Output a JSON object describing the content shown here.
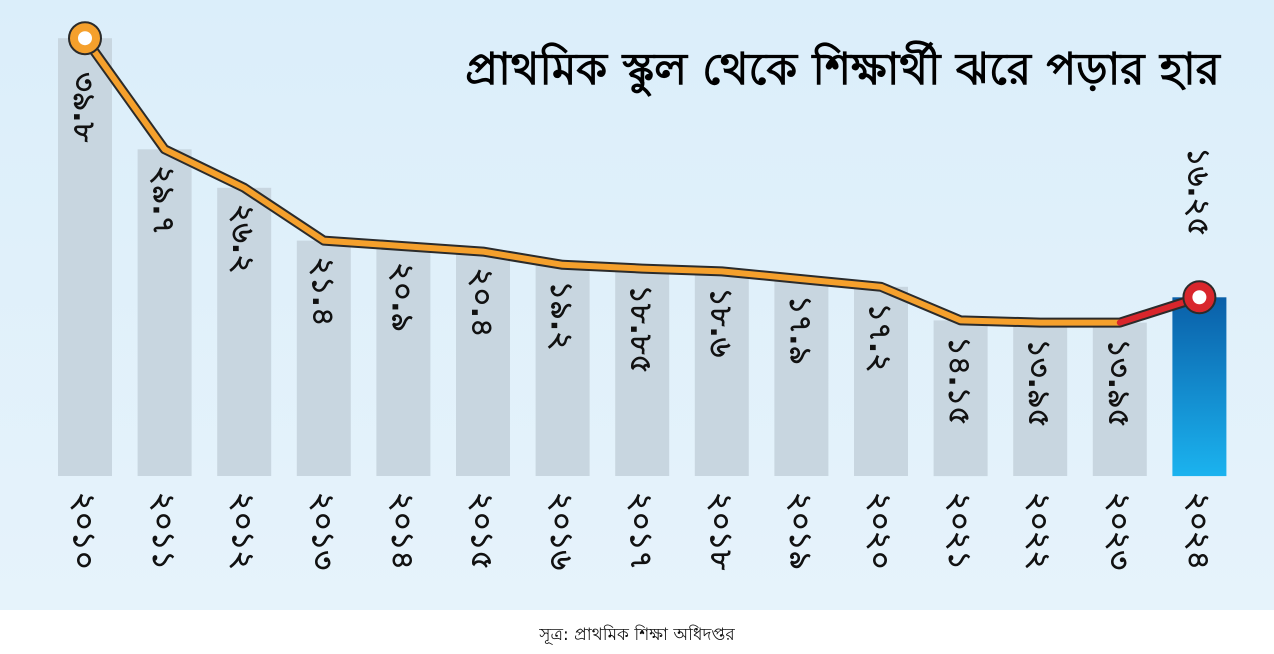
{
  "source_text": "সূত্র: প্রাথমিক শিক্ষা অধিদপ্তর",
  "colors": {
    "background_top": "#dbeefa",
    "background_bottom": "#e6f3fb",
    "footer_background": "#ffffff",
    "bar_gray": "#c8d6e0",
    "bar_highlight_top": "#0a5fa8",
    "bar_highlight_bottom": "#1bb3ef",
    "line_orange": "#f5a02c",
    "line_dark": "#2b2b2b",
    "line_red": "#d9262c",
    "marker_first": "#f5a02c",
    "marker_last": "#d9262c"
  },
  "chart_data": {
    "type": "bar",
    "title": "প্রাথমিক স্কুল থেকে শিক্ষার্থী ঝরে পড়ার হার",
    "categories": [
      "২০১০",
      "২০১১",
      "২০১২",
      "২০১৩",
      "২০১৪",
      "২০১৫",
      "২০১৬",
      "২০১৭",
      "২০১৮",
      "২০১৯",
      "২০২০",
      "২০২১",
      "২০২২",
      "২০২৩",
      "২০২৪"
    ],
    "value_labels": [
      "৩৯.৮",
      "২৯.৭",
      "২৬.২",
      "২১.৪",
      "২০.৯",
      "২০.৪",
      "১৯.২",
      "১৮.৮৫",
      "১৮.৬",
      "১৭.৯",
      "১৭.২",
      "১৪.১৫",
      "১৩.৯৫",
      "১৩.৯৫",
      "১৬.২৫"
    ],
    "values": [
      39.8,
      29.7,
      26.2,
      21.4,
      20.9,
      20.4,
      19.2,
      18.85,
      18.6,
      17.9,
      17.2,
      14.15,
      13.95,
      13.95,
      16.25
    ],
    "ylim": [
      0,
      40
    ],
    "highlight_index": 14,
    "grid": false,
    "legend": "none"
  }
}
